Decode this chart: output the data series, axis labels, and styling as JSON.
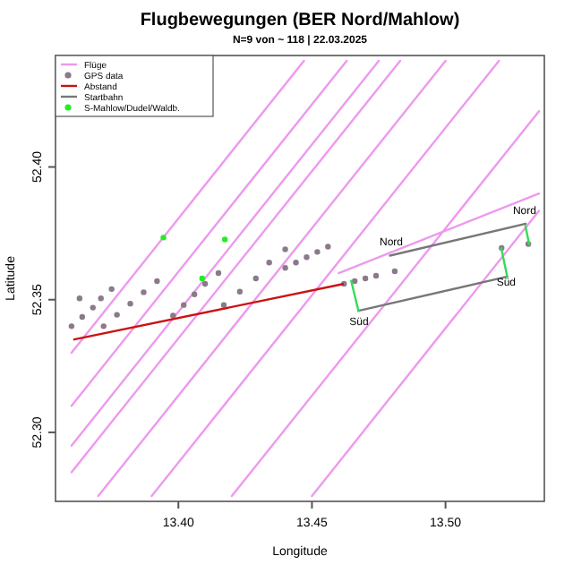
{
  "chart_data": {
    "type": "line",
    "title": "Flugbewegungen (BER Nord/Mahlow)",
    "subtitle": "N=9 von ~ 118 | 22.03.2025",
    "xlabel": "Longitude",
    "ylabel": "Latitude",
    "xlim": [
      13.354,
      13.537
    ],
    "ylim": [
      52.274,
      52.442
    ],
    "xticks": [
      {
        "value": 13.4,
        "label": "13.40"
      },
      {
        "value": 13.45,
        "label": "13.45"
      },
      {
        "value": 13.5,
        "label": "13.50"
      }
    ],
    "yticks": [
      {
        "value": 52.3,
        "label": "52.30"
      },
      {
        "value": 52.35,
        "label": "52.35"
      },
      {
        "value": 52.4,
        "label": "52.40"
      }
    ],
    "legend": "top left",
    "grid": false,
    "series": [
      {
        "name": "Flüge",
        "color": "#ee99ee",
        "x": [
          13.36,
          13.447,
          null,
          13.36,
          13.463,
          null,
          13.36,
          13.475,
          null,
          13.36,
          13.483,
          null,
          13.37,
          13.5,
          null,
          13.39,
          13.52,
          null,
          13.42,
          13.535,
          null,
          13.45,
          13.535,
          null,
          13.46,
          13.535
        ],
        "values": [
          52.33,
          52.44,
          null,
          52.31,
          52.44,
          null,
          52.295,
          52.44,
          null,
          52.285,
          52.44,
          null,
          52.276,
          52.44,
          null,
          52.276,
          52.44,
          null,
          52.276,
          52.421,
          null,
          52.276,
          52.3835,
          null,
          52.36,
          52.39
        ]
      },
      {
        "name": "GPS data",
        "type": "scatter",
        "marker": "circle",
        "color": "#8a7a8a",
        "x": [
          13.363,
          13.36,
          13.364,
          13.368,
          13.371,
          13.375,
          13.372,
          13.377,
          13.382,
          13.387,
          13.392,
          13.398,
          13.402,
          13.406,
          13.41,
          13.415,
          13.417,
          13.423,
          13.429,
          13.434,
          13.44,
          13.44,
          13.444,
          13.448,
          13.452,
          13.456,
          13.462,
          13.466,
          13.47,
          13.474,
          13.481,
          13.521,
          13.531
        ],
        "values": [
          52.3505,
          52.34,
          52.3435,
          52.347,
          52.3505,
          52.354,
          52.34,
          52.3443,
          52.3485,
          52.3528,
          52.357,
          52.344,
          52.348,
          52.352,
          52.356,
          52.36,
          52.348,
          52.353,
          52.358,
          52.364,
          52.369,
          52.362,
          52.364,
          52.366,
          52.368,
          52.37,
          52.356,
          52.357,
          52.358,
          52.359,
          52.3607,
          52.3695,
          52.371
        ]
      },
      {
        "name": "Abstand",
        "color": "#cc1111",
        "x": [
          13.361,
          13.4616
        ],
        "values": [
          52.335,
          52.3559
        ]
      },
      {
        "name": "Startbahn",
        "color": "#777777",
        "x": [
          13.4792,
          13.53,
          null,
          13.4674,
          13.5232
        ],
        "values": [
          52.3666,
          52.3786,
          null,
          52.3458,
          52.3587
        ]
      },
      {
        "color": "#33dd55",
        "x": [
          13.4647,
          13.4674,
          null,
          13.5209,
          13.5231,
          null,
          13.5299,
          13.5313
        ],
        "values": [
          52.3571,
          52.3458,
          null,
          52.3693,
          52.3587,
          null,
          52.3778,
          52.371
        ]
      },
      {
        "name": "S-Mahlow/Dudel/Waldb.",
        "type": "scatter",
        "marker": "circle",
        "color": "#22ee22",
        "x": [
          13.3944,
          13.4174,
          13.4089
        ],
        "values": [
          52.3734,
          52.3727,
          52.358
        ]
      }
    ],
    "annotations": [
      {
        "text": "Nord",
        "x": 13.4797,
        "y": 52.3704
      },
      {
        "text": "Nord",
        "x": 13.5296,
        "y": 52.3824
      },
      {
        "text": "Süd",
        "x": 13.4676,
        "y": 52.3403
      },
      {
        "text": "Süd",
        "x": 13.5227,
        "y": 52.3553
      }
    ]
  }
}
